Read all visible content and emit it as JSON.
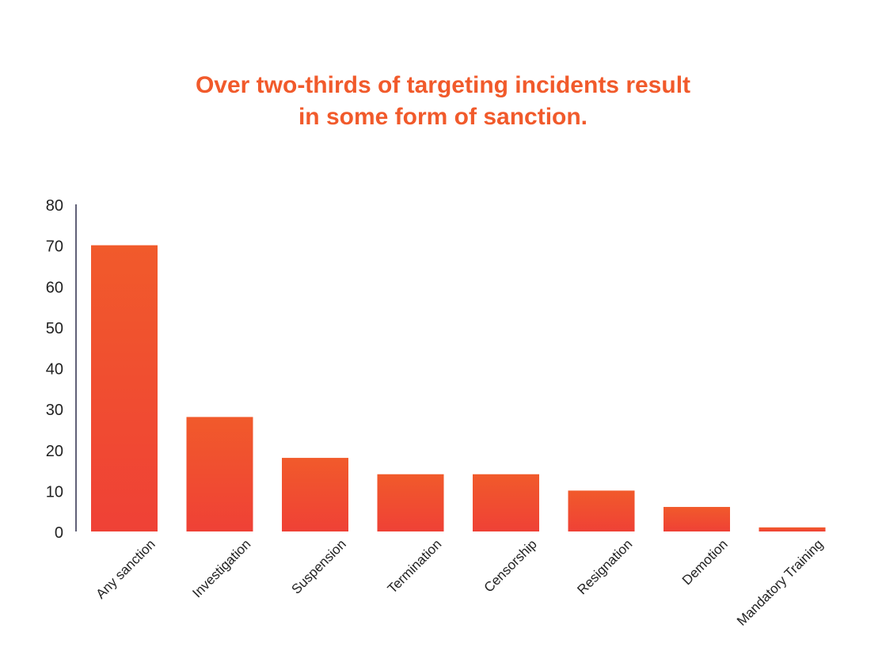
{
  "chart_data": {
    "type": "bar",
    "title_lines": [
      "Over two-thirds of targeting incidents result",
      "in some form of sanction."
    ],
    "categories": [
      "Any sanction",
      "Investigation",
      "Suspension",
      "Termination",
      "Censorship",
      "Resignation",
      "Demotion",
      "Mandatory Training"
    ],
    "values": [
      70,
      28,
      18,
      14,
      14,
      10,
      6,
      1
    ],
    "ylim": [
      0,
      80
    ],
    "yticks": [
      "0",
      "10",
      "20",
      "30",
      "40",
      "50",
      "60",
      "70",
      "80"
    ],
    "grid": false,
    "legend": "none",
    "colors": {
      "title": "#f15a2b",
      "bar_top": "#f15a2b",
      "bar_bottom": "#ef4136",
      "axis": "#2b2b4a",
      "text": "#222222"
    }
  }
}
